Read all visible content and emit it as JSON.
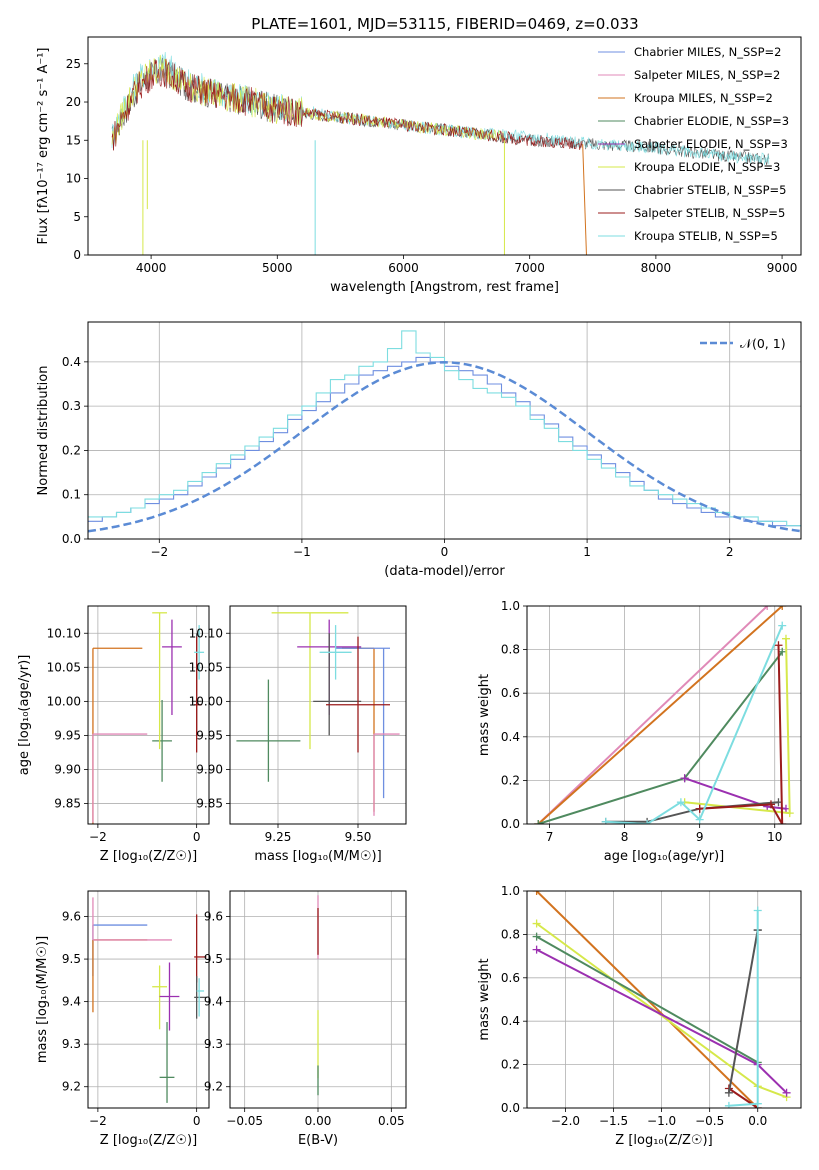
{
  "figure_title": "PLATE=1601, MJD=53115, FIBERID=0469, z=0.033",
  "colors": {
    "Chabrier MILES": "#6f8fe0",
    "Salpeter MILES": "#e08ab8",
    "Kroupa MILES": "#d2731f",
    "Chabrier ELODIE": "#4f8a5f",
    "Salpeter ELODIE": "#9b30b0",
    "Kroupa ELODIE": "#d6e84a",
    "Chabrier STELIB": "#555555",
    "Salpeter STELIB": "#9b1c1c",
    "Kroupa STELIB": "#7ddde0",
    "normal": "#5b8bd5",
    "grid": "#b0b0b0"
  },
  "chart_data": [
    {
      "type": "line",
      "title": "PLATE=1601, MJD=53115, FIBERID=0469, z=0.033",
      "xlabel": "wavelength [Angstrom, rest frame]",
      "ylabel": "Flux [fλ10⁻¹⁷ erg cm⁻² s⁻¹ A⁻¹]",
      "xlim": [
        3500,
        9150
      ],
      "ylim": [
        0,
        28.5
      ],
      "xticks": [
        4000,
        5000,
        6000,
        7000,
        8000,
        9000
      ],
      "yticks": [
        0,
        5,
        10,
        15,
        20,
        25
      ],
      "grid": false,
      "legend_position": "top-right",
      "legend": [
        "Chabrier MILES, N_SSP=2",
        "Salpeter MILES, N_SSP=2",
        "Kroupa MILES, N_SSP=2",
        "Chabrier ELODIE, N_SSP=3",
        "Salpeter ELODIE, N_SSP=3",
        "Kroupa ELODIE, N_SSP=3",
        "Chabrier STELIB, N_SSP=5",
        "Salpeter STELIB, N_SSP=5",
        "Kroupa STELIB, N_SSP=5"
      ],
      "series": [
        {
          "name": "Chabrier STELIB, N_SSP=5",
          "x": [
            3690,
            3800,
            3900,
            4000,
            4100,
            4300,
            4500,
            4800,
            5000,
            5500,
            6000,
            6500,
            7000,
            7500,
            8000,
            8500,
            8900
          ],
          "y": [
            15,
            19,
            22,
            23.5,
            24,
            22,
            21,
            20,
            19,
            18,
            17,
            16,
            15,
            14.5,
            14,
            13,
            12.5
          ]
        },
        {
          "name": "Kroupa STELIB, N_SSP=5",
          "x": [
            3690,
            3800,
            3900,
            4000,
            4100,
            4300,
            4500,
            4800,
            5000,
            5500,
            6000,
            6500,
            7000,
            7500,
            8000,
            8500,
            8900
          ],
          "y": [
            15.5,
            20,
            23,
            24.5,
            25,
            22.5,
            21.5,
            20,
            19.5,
            18,
            17,
            16,
            15.5,
            14.5,
            14,
            13,
            12.5
          ]
        },
        {
          "name": "Kroupa ELODIE, N_SSP=3",
          "x": [
            3690,
            3800,
            3900,
            4000,
            4100,
            4300,
            4500,
            4800,
            5000,
            5500,
            6000,
            6500,
            6800
          ],
          "y": [
            15,
            19.5,
            22.5,
            24,
            24.5,
            22,
            21,
            20,
            19,
            18,
            17,
            16,
            15.5
          ]
        },
        {
          "name": "Salpeter STELIB, N_SSP=5",
          "x": [
            3690,
            3800,
            3900,
            4000,
            4100,
            4300,
            4500,
            4800,
            5000,
            5500,
            6000,
            6500,
            7000,
            7420
          ],
          "y": [
            15,
            19,
            22,
            23.5,
            24,
            22,
            21,
            20,
            19,
            18,
            17,
            16,
            15,
            14.5
          ]
        }
      ]
    },
    {
      "type": "line",
      "xlabel": "(data-model)/error",
      "ylabel": "Normed distribution",
      "xlim": [
        -2.5,
        2.5
      ],
      "ylim": [
        0,
        0.49
      ],
      "xticks": [
        -2,
        -1,
        0,
        1,
        2
      ],
      "yticks": [
        0.0,
        0.1,
        0.2,
        0.3,
        0.4
      ],
      "grid": true,
      "legend_position": "top-right",
      "legend": [
        "𝒩(0, 1)"
      ],
      "normal_curve": {
        "name": "𝒩(0, 1)",
        "mean": 0,
        "sigma": 1
      },
      "histogram_bin_width": 0.1,
      "histogram_series": [
        {
          "name": "Chabrier MILES",
          "values": [
            0.04,
            0.05,
            0.06,
            0.07,
            0.08,
            0.09,
            0.1,
            0.12,
            0.14,
            0.16,
            0.18,
            0.2,
            0.22,
            0.24,
            0.27,
            0.29,
            0.31,
            0.33,
            0.35,
            0.37,
            0.38,
            0.39,
            0.4,
            0.41,
            0.4,
            0.39,
            0.38,
            0.37,
            0.35,
            0.33,
            0.31,
            0.28,
            0.26,
            0.23,
            0.21,
            0.19,
            0.17,
            0.15,
            0.13,
            0.11,
            0.09,
            0.08,
            0.07,
            0.06,
            0.05,
            0.05,
            0.04,
            0.04,
            0.03,
            0.03
          ]
        },
        {
          "name": "Kroupa STELIB",
          "values": [
            0.05,
            0.05,
            0.06,
            0.07,
            0.09,
            0.1,
            0.11,
            0.13,
            0.15,
            0.17,
            0.19,
            0.21,
            0.23,
            0.25,
            0.28,
            0.3,
            0.33,
            0.36,
            0.37,
            0.39,
            0.4,
            0.43,
            0.47,
            0.42,
            0.41,
            0.38,
            0.36,
            0.34,
            0.33,
            0.32,
            0.3,
            0.27,
            0.25,
            0.22,
            0.2,
            0.18,
            0.16,
            0.14,
            0.12,
            0.11,
            0.1,
            0.09,
            0.08,
            0.07,
            0.06,
            0.05,
            0.05,
            0.04,
            0.04,
            0.03
          ]
        }
      ]
    },
    {
      "type": "scatter",
      "xlabel": "Z [log₁₀(Z/Z☉)]",
      "ylabel": "age  [log₁₀(age/yr)]",
      "xlim": [
        -2.2,
        0.25
      ],
      "ylim": [
        9.82,
        10.14
      ],
      "xticks": [
        -2,
        0
      ],
      "yticks": [
        9.85,
        9.9,
        9.95,
        10.0,
        10.05,
        10.1
      ],
      "grid": true,
      "points": [
        {
          "name": "Kroupa MILES",
          "x": -2.1,
          "y": 10.078,
          "xerr": [
            0,
            1.0
          ],
          "yerr": [
            0.26,
            0
          ]
        },
        {
          "name": "Salpeter MILES",
          "x": -2.1,
          "y": 9.952,
          "xerr": [
            0,
            1.1
          ],
          "yerr": [
            0.13,
            0
          ]
        },
        {
          "name": "Chabrier ELODIE",
          "x": -0.7,
          "y": 9.942,
          "xerr": [
            0.2,
            0.2
          ],
          "yerr": [
            0.06,
            0.06
          ]
        },
        {
          "name": "Kroupa ELODIE",
          "x": -0.75,
          "y": 10.13,
          "xerr": [
            0.15,
            0.15
          ],
          "yerr": [
            0.2,
            0
          ]
        },
        {
          "name": "Salpeter ELODIE",
          "x": -0.5,
          "y": 10.08,
          "xerr": [
            0.2,
            0.2
          ],
          "yerr": [
            0.1,
            0.04
          ]
        },
        {
          "name": "Chabrier STELIB",
          "x": 0.0,
          "y": 10.0,
          "xerr": [
            0.1,
            0.1
          ],
          "yerr": [
            0.05,
            0.1
          ]
        },
        {
          "name": "Salpeter STELIB",
          "x": 0.0,
          "y": 9.995,
          "xerr": [
            0.05,
            0.1
          ],
          "yerr": [
            0.07,
            0.1
          ]
        },
        {
          "name": "Kroupa STELIB",
          "x": 0.05,
          "y": 10.072,
          "xerr": [
            0.1,
            0.1
          ],
          "yerr": [
            0.04,
            0.04
          ]
        }
      ]
    },
    {
      "type": "scatter",
      "xlabel": "mass [log₁₀(M/M☉)]",
      "ylabel": "",
      "xlim": [
        9.1,
        9.65
      ],
      "ylim": [
        9.82,
        10.14
      ],
      "xticks": [
        9.25,
        9.5
      ],
      "yticks": [
        9.85,
        9.9,
        9.95,
        10.0,
        10.05,
        10.1
      ],
      "grid": true,
      "points": [
        {
          "name": "Kroupa ELODIE",
          "x": 9.35,
          "y": 10.13,
          "xerr": [
            0.12,
            0.12
          ],
          "yerr": [
            0.2,
            0
          ]
        },
        {
          "name": "Chabrier ELODIE",
          "x": 9.22,
          "y": 9.942,
          "xerr": [
            0.1,
            0.1
          ],
          "yerr": [
            0.06,
            0.09
          ]
        },
        {
          "name": "Salpeter ELODIE",
          "x": 9.41,
          "y": 10.08,
          "xerr": [
            0.1,
            0.1
          ],
          "yerr": [
            0.1,
            0.04
          ]
        },
        {
          "name": "Kroupa MILES",
          "x": 9.55,
          "y": 10.078,
          "xerr": [
            0.1,
            0.0
          ],
          "yerr": [
            0.24,
            0
          ]
        },
        {
          "name": "Chabrier MILES",
          "x": 9.58,
          "y": 10.078,
          "xerr": [
            0.15,
            0.02
          ],
          "yerr": [
            0.22,
            0
          ]
        },
        {
          "name": "Salpeter MILES",
          "x": 9.55,
          "y": 9.952,
          "xerr": [
            0,
            0.08
          ],
          "yerr": [
            0.12,
            0
          ]
        },
        {
          "name": "Chabrier STELIB",
          "x": 9.41,
          "y": 10.0,
          "xerr": [
            0.05,
            0.1
          ],
          "yerr": [
            0.05,
            0.1
          ]
        },
        {
          "name": "Salpeter STELIB",
          "x": 9.5,
          "y": 9.995,
          "xerr": [
            0.1,
            0.1
          ],
          "yerr": [
            0.07,
            0.1
          ]
        },
        {
          "name": "Kroupa STELIB",
          "x": 9.43,
          "y": 10.072,
          "xerr": [
            0.05,
            0.05
          ],
          "yerr": [
            0.04,
            0.04
          ]
        }
      ]
    },
    {
      "type": "line",
      "xlabel": "age  [log₁₀(age/yr)]",
      "ylabel": "mass weight",
      "xlim": [
        6.7,
        10.35
      ],
      "ylim": [
        0,
        1.0
      ],
      "xticks": [
        7,
        8,
        9,
        10
      ],
      "yticks": [
        0.0,
        0.2,
        0.4,
        0.6,
        0.8,
        1.0
      ],
      "grid": true,
      "series": [
        {
          "name": "Salpeter MILES",
          "x": [
            6.85,
            9.9
          ],
          "y": [
            0.0,
            1.0
          ]
        },
        {
          "name": "Kroupa MILES",
          "x": [
            6.85,
            10.1
          ],
          "y": [
            0.0,
            1.0
          ]
        },
        {
          "name": "Chabrier ELODIE",
          "x": [
            6.85,
            8.8,
            10.1
          ],
          "y": [
            0.0,
            0.21,
            0.79
          ]
        },
        {
          "name": "Salpeter ELODIE",
          "x": [
            8.8,
            9.9,
            10.15
          ],
          "y": [
            0.21,
            0.08,
            0.07
          ]
        },
        {
          "name": "Kroupa ELODIE",
          "x": [
            8.8,
            10.2,
            10.15
          ],
          "y": [
            0.1,
            0.05,
            0.85
          ]
        },
        {
          "name": "Chabrier STELIB",
          "x": [
            7.75,
            8.3,
            9.0,
            10.05
          ],
          "y": [
            0.01,
            0.01,
            0.07,
            0.1
          ]
        },
        {
          "name": "Salpeter STELIB",
          "x": [
            9.0,
            9.95,
            10.1,
            10.05
          ],
          "y": [
            0.07,
            0.09,
            0.0,
            0.82
          ]
        },
        {
          "name": "Kroupa STELIB",
          "x": [
            7.75,
            8.3,
            8.75,
            9.0,
            10.1
          ],
          "y": [
            0.01,
            0.0,
            0.1,
            0.02,
            0.91
          ]
        }
      ]
    },
    {
      "type": "scatter",
      "xlabel": "Z [log₁₀(Z/Z☉)]",
      "ylabel": "mass [log₁₀(M/M☉)]",
      "xlim": [
        -2.2,
        0.25
      ],
      "ylim": [
        9.15,
        9.66
      ],
      "xticks": [
        -2,
        0
      ],
      "yticks": [
        9.2,
        9.3,
        9.4,
        9.5,
        9.6
      ],
      "grid": true,
      "points": [
        {
          "name": "Chabrier MILES",
          "x": -2.1,
          "y": 9.58,
          "xerr": [
            0,
            1.1
          ],
          "yerr": [
            0.12,
            0
          ]
        },
        {
          "name": "Kroupa MILES",
          "x": -2.1,
          "y": 9.545,
          "xerr": [
            0,
            1.1
          ],
          "yerr": [
            0.17,
            0
          ]
        },
        {
          "name": "Salpeter MILES",
          "x": -2.1,
          "y": 9.545,
          "xerr": [
            0,
            1.6
          ],
          "yerr": [
            0,
            0.1
          ]
        },
        {
          "name": "Kroupa ELODIE",
          "x": -0.75,
          "y": 9.435,
          "xerr": [
            0.15,
            0.15
          ],
          "yerr": [
            0.1,
            0.05
          ]
        },
        {
          "name": "Salpeter ELODIE",
          "x": -0.55,
          "y": 9.412,
          "xerr": [
            0.2,
            0.2
          ],
          "yerr": [
            0.08,
            0.08
          ]
        },
        {
          "name": "Chabrier ELODIE",
          "x": -0.6,
          "y": 9.222,
          "xerr": [
            0.15,
            0.15
          ],
          "yerr": [
            0.06,
            0.13
          ]
        },
        {
          "name": "Salpeter STELIB",
          "x": 0.0,
          "y": 9.505,
          "xerr": [
            0.05,
            0.2
          ],
          "yerr": [
            0.06,
            0.1
          ]
        },
        {
          "name": "Chabrier STELIB",
          "x": 0.0,
          "y": 9.41,
          "xerr": [
            0.05,
            0.2
          ],
          "yerr": [
            0.05,
            0.05
          ]
        },
        {
          "name": "Kroupa STELIB",
          "x": 0.05,
          "y": 9.425,
          "xerr": [
            0.05,
            0.1
          ],
          "yerr": [
            0.06,
            0.03
          ]
        }
      ]
    },
    {
      "type": "scatter",
      "xlabel": "E(B-V)",
      "ylabel": "",
      "xlim": [
        -0.06,
        0.06
      ],
      "ylim": [
        9.15,
        9.66
      ],
      "xticks": [
        -0.05,
        0.0,
        0.05
      ],
      "yticks": [
        9.2,
        9.3,
        9.4,
        9.5,
        9.6
      ],
      "grid": true,
      "points": [
        {
          "name": "Salpeter MILES",
          "x": 0.0,
          "y": 9.6,
          "xerr": [
            0,
            0
          ],
          "yerr": [
            0.1,
            0.05
          ]
        },
        {
          "name": "Salpeter STELIB",
          "x": 0.0,
          "y": 9.56,
          "xerr": [
            0,
            0
          ],
          "yerr": [
            0.05,
            0.06
          ]
        },
        {
          "name": "Kroupa ELODIE",
          "x": 0.0,
          "y": 9.3,
          "xerr": [
            0,
            0
          ],
          "yerr": [
            0.08,
            0.08
          ]
        },
        {
          "name": "Chabrier ELODIE",
          "x": 0.0,
          "y": 9.2,
          "xerr": [
            0,
            0
          ],
          "yerr": [
            0.02,
            0.05
          ]
        }
      ]
    },
    {
      "type": "line",
      "xlabel": "Z [log₁₀(Z/Z☉)]",
      "ylabel": "mass weight",
      "xlim": [
        -2.4,
        0.45
      ],
      "ylim": [
        0,
        1.0
      ],
      "xticks": [
        -2.0,
        -1.5,
        -1.0,
        -0.5,
        0.0
      ],
      "yticks": [
        0.0,
        0.2,
        0.4,
        0.6,
        0.8,
        1.0
      ],
      "grid": true,
      "series": [
        {
          "name": "Kroupa MILES",
          "x": [
            -2.3,
            0.0
          ],
          "y": [
            1.0,
            0.0
          ]
        },
        {
          "name": "Kroupa ELODIE",
          "x": [
            -2.3,
            0.0,
            0.3
          ],
          "y": [
            0.85,
            0.1,
            0.05
          ]
        },
        {
          "name": "Chabrier ELODIE",
          "x": [
            -2.3,
            0.0
          ],
          "y": [
            0.79,
            0.21
          ]
        },
        {
          "name": "Salpeter ELODIE",
          "x": [
            -2.3,
            0.0,
            0.3
          ],
          "y": [
            0.73,
            0.2,
            0.07
          ]
        },
        {
          "name": "Salpeter STELIB",
          "x": [
            -0.3,
            0.0
          ],
          "y": [
            0.09,
            0.0
          ]
        },
        {
          "name": "Chabrier STELIB",
          "x": [
            -0.3,
            0.0,
            0.0
          ],
          "y": [
            0.07,
            0.82,
            0.82
          ]
        },
        {
          "name": "Kroupa STELIB",
          "x": [
            0.0,
            0.0,
            -0.3,
            0.0
          ],
          "y": [
            0.91,
            0.02,
            0.01,
            0.02
          ]
        }
      ]
    }
  ]
}
